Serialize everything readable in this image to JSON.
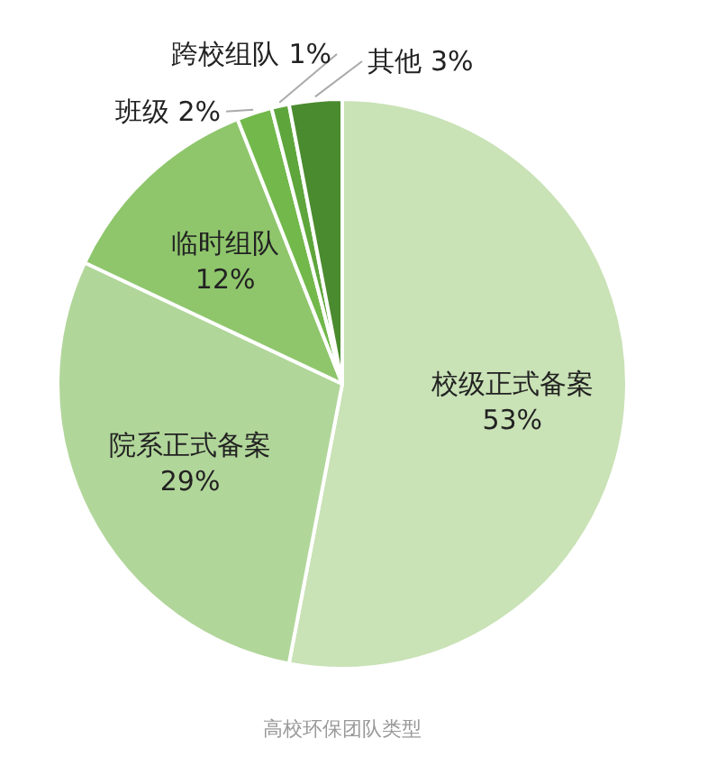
{
  "chart_data": {
    "type": "pie",
    "categories": [
      "校级正式备案",
      "院系正式备案",
      "临时组队",
      "班级",
      "跨校组队",
      "其他"
    ],
    "values": [
      53,
      29,
      12,
      2,
      1,
      3
    ],
    "colors": [
      "#c9e2b6",
      "#b1d69a",
      "#8fc66c",
      "#72b84b",
      "#5ea63c",
      "#4b8b2f"
    ],
    "value_labels": [
      "53%",
      "29%",
      "12%",
      "2%",
      "1%",
      "3%"
    ],
    "annotations": [
      "高校环保团队类型"
    ]
  }
}
